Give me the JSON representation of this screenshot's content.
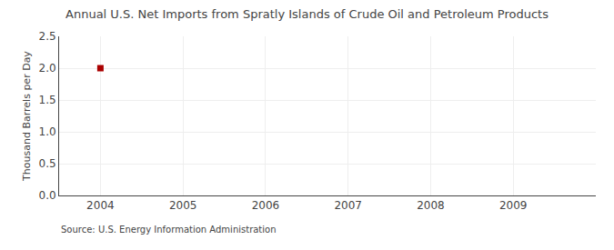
{
  "chart_data": {
    "type": "scatter",
    "title": "Annual U.S. Net Imports from Spratly Islands of Crude Oil and Petroleum Products",
    "ylabel": "Thousand Barrels per Day",
    "annotations": [
      "Source: U.S. Energy Information Administration"
    ],
    "x": [
      2004
    ],
    "values": [
      2.0
    ],
    "color": "#aa0000",
    "marker": "square",
    "xlim": [
      2003.5,
      2010.0
    ],
    "xticks": [
      2004,
      2005,
      2006,
      2007,
      2008,
      2009
    ],
    "ylim": [
      0.0,
      2.5
    ],
    "yticks": [
      {
        "value": 0.0,
        "label": "0.0"
      },
      0.5,
      {
        "value": 1.0,
        "label": "1.0"
      },
      1.5,
      {
        "value": 2.0,
        "label": "2.0"
      },
      2.5
    ],
    "grid": true
  }
}
